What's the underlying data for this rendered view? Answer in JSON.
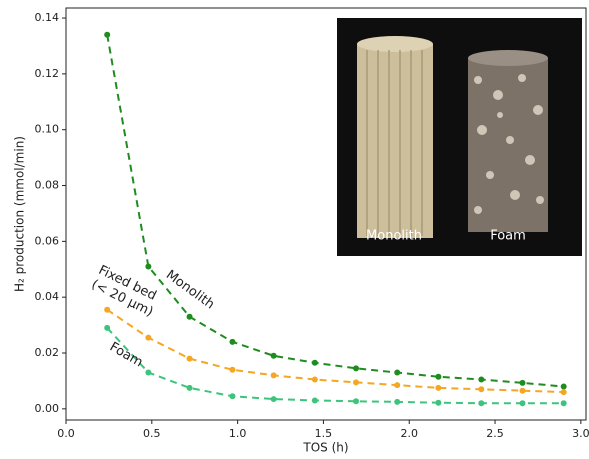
{
  "chart_data": {
    "type": "line",
    "xlabel": "TOS (h)",
    "ylabel": "H₂ production (mmol/min)",
    "x": [
      0.24,
      0.48,
      0.72,
      0.97,
      1.21,
      1.45,
      1.69,
      1.93,
      2.17,
      2.42,
      2.66,
      2.9
    ],
    "series": [
      {
        "name": "Monolith",
        "color": "#1e8c1e",
        "values": [
          0.134,
          0.051,
          0.033,
          0.024,
          0.019,
          0.0165,
          0.0145,
          0.013,
          0.0115,
          0.0105,
          0.0093,
          0.008
        ]
      },
      {
        "name": "Fixed bed (< 20 μm)",
        "color": "#f5a623",
        "values": [
          0.0355,
          0.0255,
          0.018,
          0.014,
          0.012,
          0.0105,
          0.0095,
          0.0085,
          0.0075,
          0.007,
          0.0065,
          0.006
        ]
      },
      {
        "name": "Foam",
        "color": "#3cc47c",
        "values": [
          0.029,
          0.013,
          0.0075,
          0.0045,
          0.0035,
          0.003,
          0.0027,
          0.0025,
          0.0022,
          0.002,
          0.002,
          0.002
        ]
      }
    ],
    "xlim": [
      0,
      3.03
    ],
    "ylim": [
      -0.004,
      0.1436
    ],
    "xticks": [
      {
        "value": 0,
        "label": "0.0"
      },
      0.5,
      {
        "value": 1,
        "label": "1.0"
      },
      1.5,
      {
        "value": 2,
        "label": "2.0"
      },
      2.5,
      {
        "value": 3,
        "label": "3.0"
      }
    ],
    "yticks": [
      {
        "value": 0,
        "label": "0.00"
      },
      0.02,
      0.04,
      0.06,
      0.08,
      {
        "value": 0.1,
        "label": "0.10"
      },
      0.12,
      0.14
    ],
    "grid": false,
    "inset_labels": [
      "Monolith",
      "Foam"
    ]
  }
}
